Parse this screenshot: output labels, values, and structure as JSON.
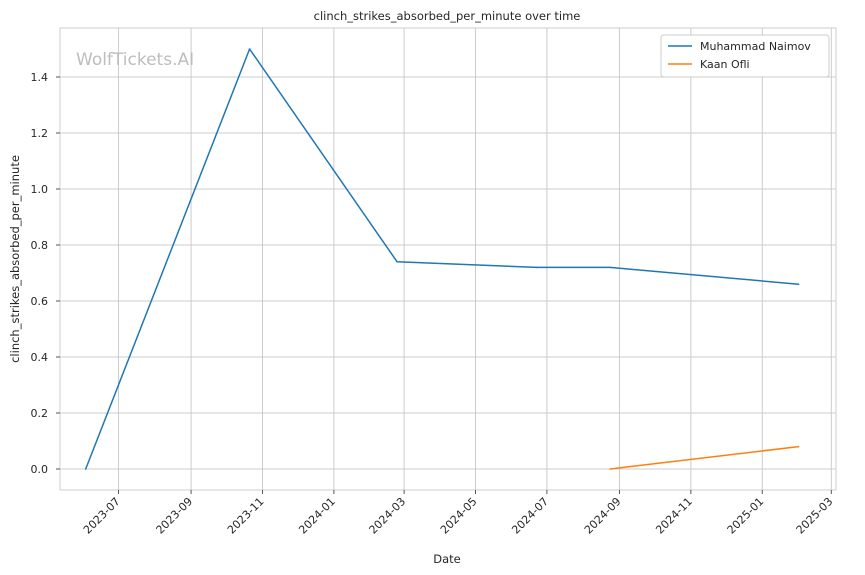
{
  "chart_data": {
    "type": "line",
    "title": "clinch_strikes_absorbed_per_minute over time",
    "xlabel": "Date",
    "ylabel": "clinch_strikes_absorbed_per_minute",
    "watermark": "WolfTickets.AI",
    "x_ticks": [
      "2023-07",
      "2023-09",
      "2023-11",
      "2024-01",
      "2024-03",
      "2024-05",
      "2024-07",
      "2024-09",
      "2024-11",
      "2025-01",
      "2025-03"
    ],
    "y_ticks": [
      "0.0",
      "0.2",
      "0.4",
      "0.6",
      "0.8",
      "1.0",
      "1.2",
      "1.4"
    ],
    "xlim": [
      "2023-05-12",
      "2025-03-05"
    ],
    "ylim": [
      -0.075,
      1.575
    ],
    "grid": true,
    "legend_position": "top-right",
    "series": [
      {
        "name": "Muhammad Naimov",
        "color": "#1f77b4",
        "points": [
          {
            "x": "2023-06-03",
            "y": 0.0
          },
          {
            "x": "2023-10-21",
            "y": 1.5
          },
          {
            "x": "2024-02-24",
            "y": 0.74
          },
          {
            "x": "2024-06-22",
            "y": 0.72
          },
          {
            "x": "2024-08-24",
            "y": 0.72
          },
          {
            "x": "2025-02-01",
            "y": 0.66
          }
        ]
      },
      {
        "name": "Kaan Ofli",
        "color": "#ff7f0e",
        "points": [
          {
            "x": "2024-08-24",
            "y": 0.0
          },
          {
            "x": "2025-02-01",
            "y": 0.08
          }
        ]
      }
    ]
  }
}
